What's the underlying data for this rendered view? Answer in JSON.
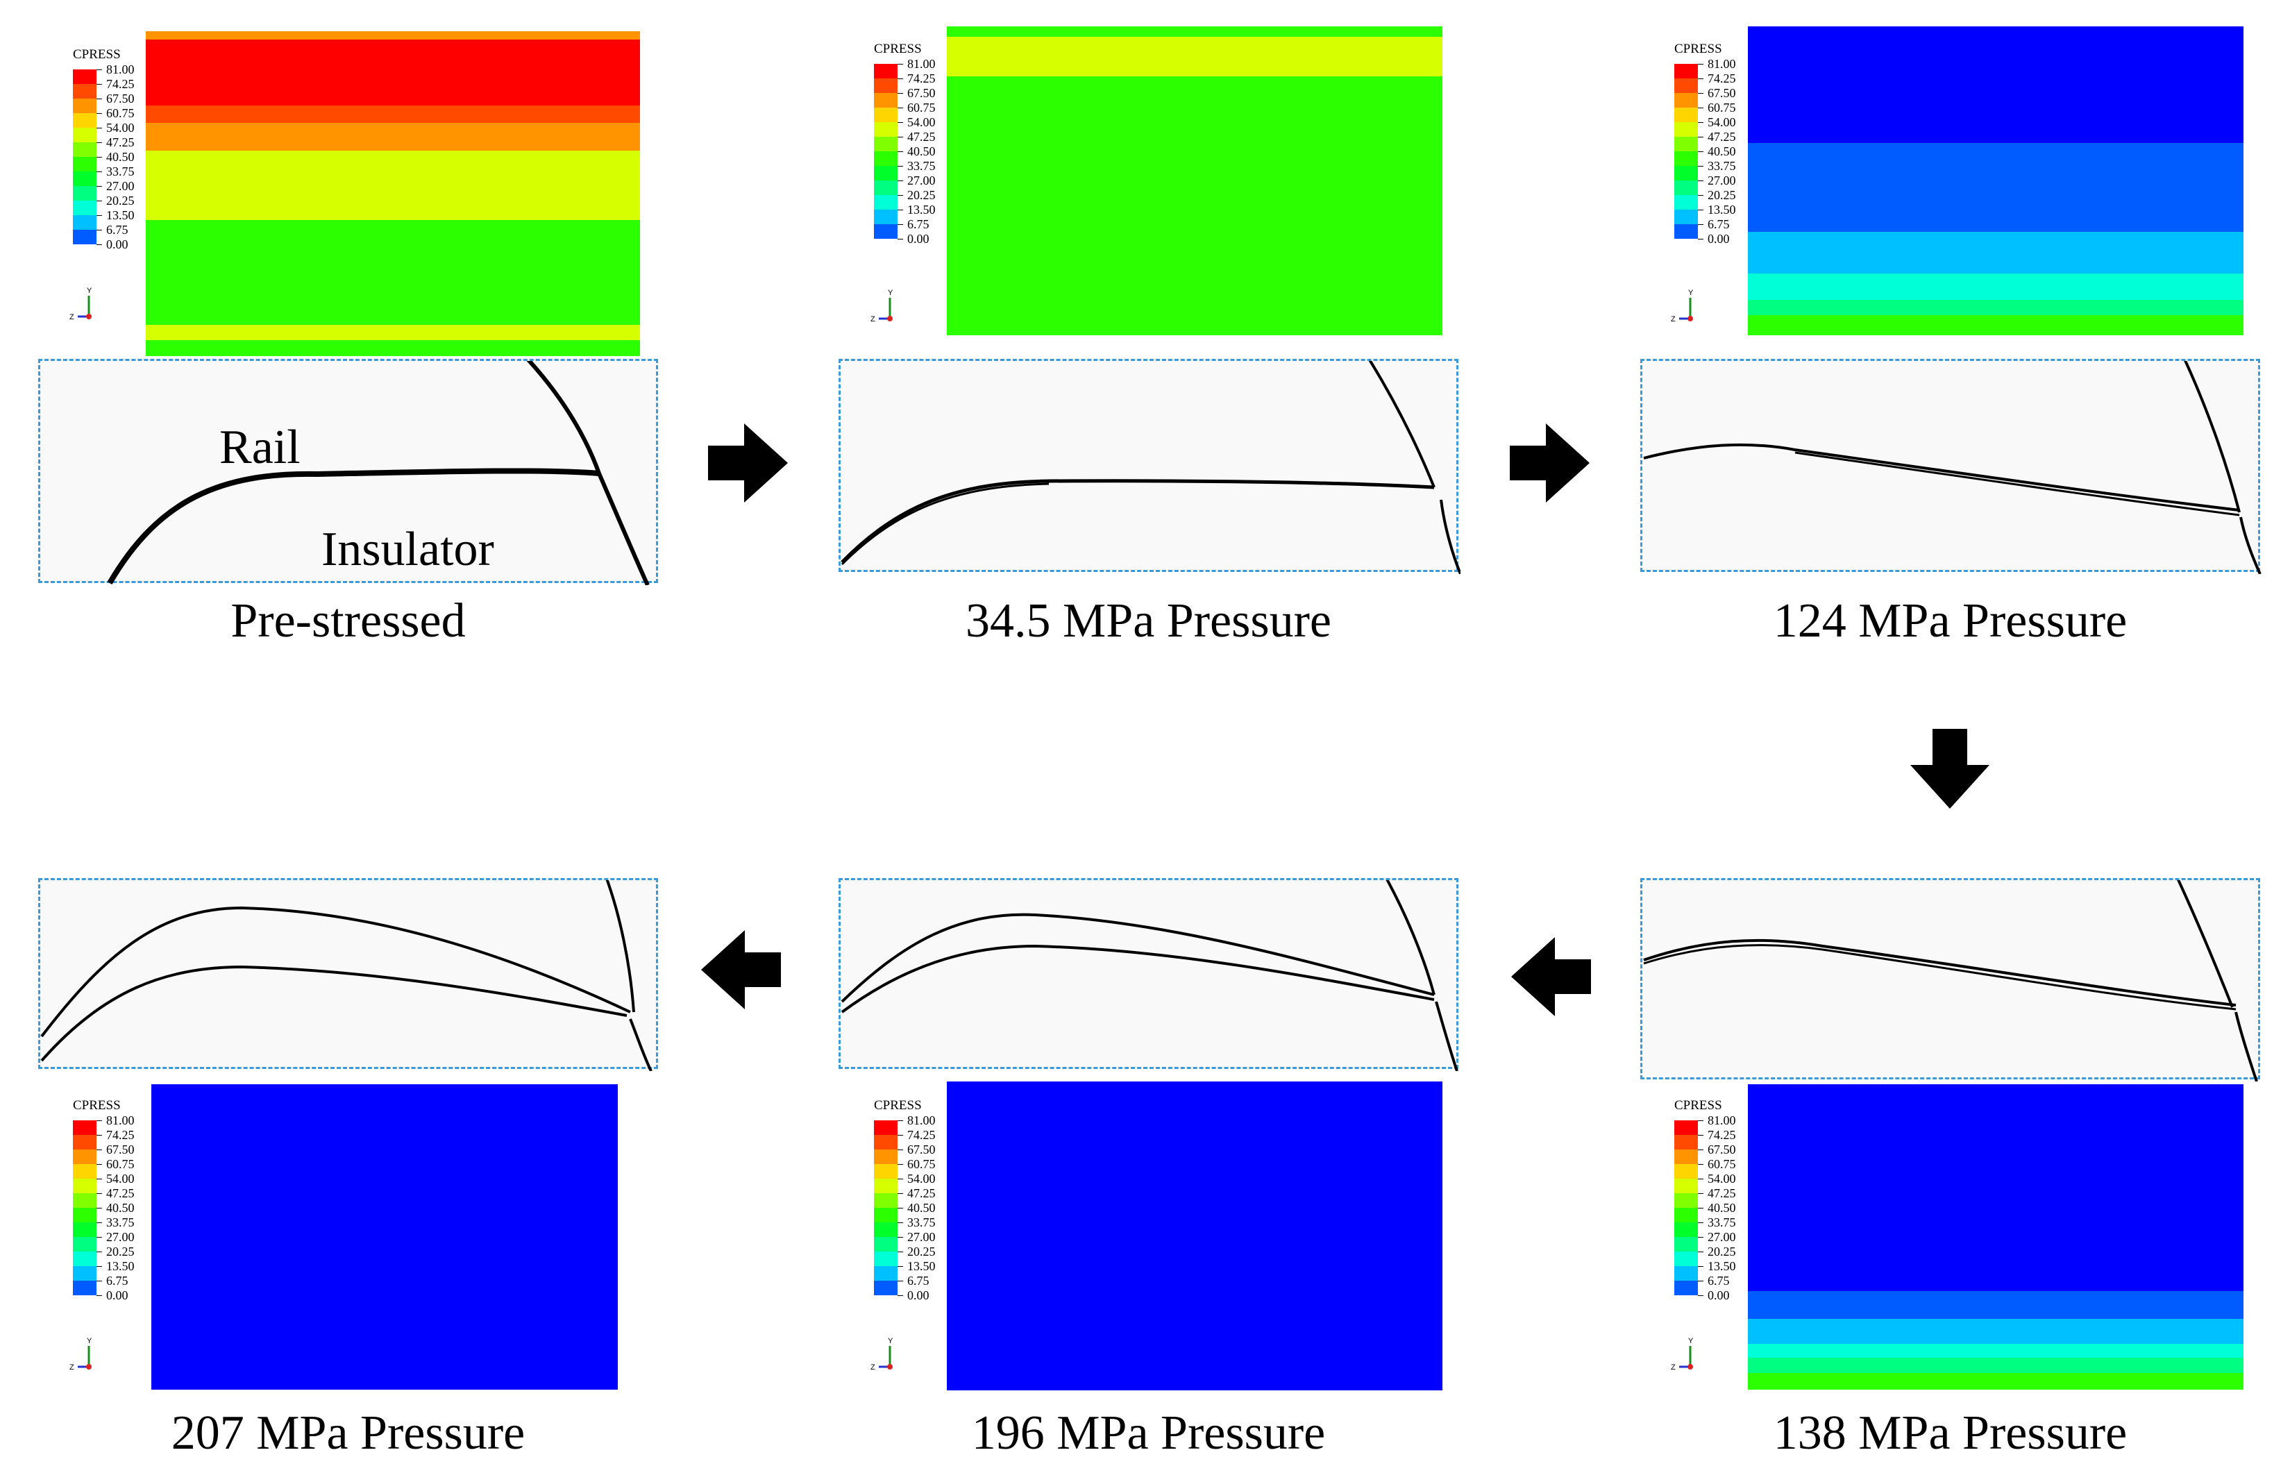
{
  "legend": {
    "title": "CPRESS",
    "values": [
      "81.00",
      "74.25",
      "67.50",
      "60.75",
      "54.00",
      "47.25",
      "40.50",
      "33.75",
      "27.00",
      "20.25",
      "13.50",
      "6.75",
      "0.00"
    ],
    "colors": [
      "#ff0000",
      "#ff4a00",
      "#ff9400",
      "#ffd500",
      "#d6ff00",
      "#80ff00",
      "#2cff00",
      "#00ff2a",
      "#00ff80",
      "#00ffd6",
      "#00c0ff",
      "#005cff",
      "#0000ff"
    ]
  },
  "axes": {
    "y": "Y",
    "z": "Z"
  },
  "labels": {
    "rail": "Rail",
    "insulator": "Insulator"
  },
  "stages": [
    {
      "caption": "Pre-stressed",
      "field": [
        "#d6ff00",
        "#2cff00",
        "#2cff00",
        "#2cff00",
        "#2cff00",
        "#d6ff00",
        "#ff9400",
        "#ff4a00",
        "#ff0000",
        "#ff0000"
      ]
    },
    {
      "caption": "34.5 MPa Pressure",
      "field": [
        "#2cff00",
        "#2cff00",
        "#2cff00",
        "#2cff00",
        "#2cff00",
        "#2cff00",
        "#2cff00",
        "#2cff00",
        "#d6ff00",
        "#2cff00"
      ]
    },
    {
      "caption": "124 MPa Pressure",
      "field": [
        "#2cff00",
        "#00ff80",
        "#00ffd6",
        "#00c0ff",
        "#005cff",
        "#005cff",
        "#005cff",
        "#0000ff",
        "#0000ff",
        "#0000ff"
      ]
    },
    {
      "caption": "138 MPa Pressure",
      "field": [
        "#2cff00",
        "#00ff80",
        "#00ffd6",
        "#00c0ff",
        "#005cff",
        "#0000ff",
        "#0000ff",
        "#0000ff",
        "#0000ff",
        "#0000ff"
      ]
    },
    {
      "caption": "196 MPa Pressure",
      "field": [
        "#0000ff",
        "#0000ff",
        "#0000ff",
        "#0000ff",
        "#0000ff",
        "#0000ff",
        "#0000ff",
        "#0000ff",
        "#0000ff",
        "#0000ff"
      ]
    },
    {
      "caption": "207 MPa Pressure",
      "field": [
        "#0000ff",
        "#0000ff",
        "#0000ff",
        "#0000ff",
        "#0000ff",
        "#0000ff",
        "#0000ff",
        "#0000ff",
        "#0000ff",
        "#0000ff"
      ]
    }
  ],
  "flow": [
    "right",
    "right",
    "down",
    "left",
    "left"
  ]
}
